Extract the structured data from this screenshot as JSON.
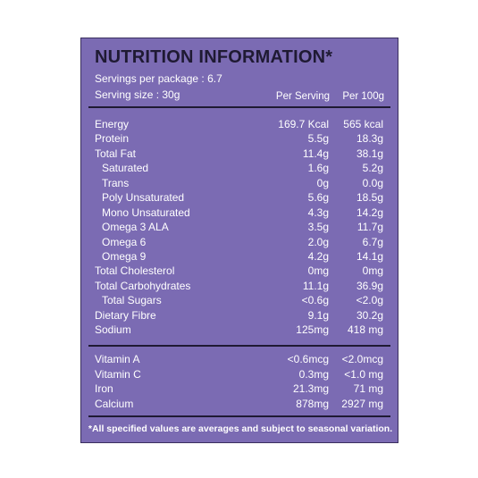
{
  "panel": {
    "title": "NUTRITION INFORMATION*",
    "servings_per_package": "Servings per package : 6.7",
    "serving_size": "Serving  size : 30g",
    "col_per_serving": "Per Serving",
    "col_per_100g": "Per 100g",
    "nutrients": [
      {
        "label": "Energy",
        "per_serving": "169.7 Kcal",
        "per_100g": "565 kcal"
      },
      {
        "label": "Protein",
        "per_serving": "5.5g",
        "per_100g": "18.3g"
      },
      {
        "label": "Total Fat",
        "per_serving": "11.4g",
        "per_100g": "38.1g"
      },
      {
        "label": "Saturated",
        "per_serving": "1.6g",
        "per_100g": "5.2g"
      },
      {
        "label": "Trans",
        "per_serving": "0g",
        "per_100g": "0.0g"
      },
      {
        "label": "Poly Unsaturated",
        "per_serving": "5.6g",
        "per_100g": "18.5g"
      },
      {
        "label": "Mono Unsaturated",
        "per_serving": "4.3g",
        "per_100g": "14.2g"
      },
      {
        "label": "Omega 3 ALA",
        "per_serving": "3.5g",
        "per_100g": "11.7g"
      },
      {
        "label": "Omega 6",
        "per_serving": "2.0g",
        "per_100g": "6.7g"
      },
      {
        "label": "Omega 9",
        "per_serving": "4.2g",
        "per_100g": "14.1g"
      },
      {
        "label": "Total Cholesterol",
        "per_serving": "0mg",
        "per_100g": "0mg"
      },
      {
        "label": "Total Carbohydrates",
        "per_serving": "11.1g",
        "per_100g": "36.9g"
      },
      {
        "label": "Total Sugars",
        "per_serving": "<0.6g",
        "per_100g": "<2.0g"
      },
      {
        "label": "Dietary Fibre",
        "per_serving": "9.1g",
        "per_100g": "30.2g"
      },
      {
        "label": "Sodium",
        "per_serving": "125mg",
        "per_100g": "418 mg"
      }
    ],
    "vitamins": [
      {
        "label": "Vitamin A",
        "per_serving": "<0.6mcg",
        "per_100g": "<2.0mcg"
      },
      {
        "label": "Vitamin C",
        "per_serving": "0.3mg",
        "per_100g": "<1.0 mg"
      },
      {
        "label": "Iron",
        "per_serving": "21.3mg",
        "per_100g": "71 mg"
      },
      {
        "label": "Calcium",
        "per_serving": "878mg",
        "per_100g": "2927 mg"
      }
    ],
    "footnote": "*All specified values are averages and subject to seasonal variation."
  },
  "colors": {
    "panel_bg": "#7b6bb3",
    "rule": "#1f1a33",
    "title": "#1f1a33",
    "text": "#ffffff"
  }
}
